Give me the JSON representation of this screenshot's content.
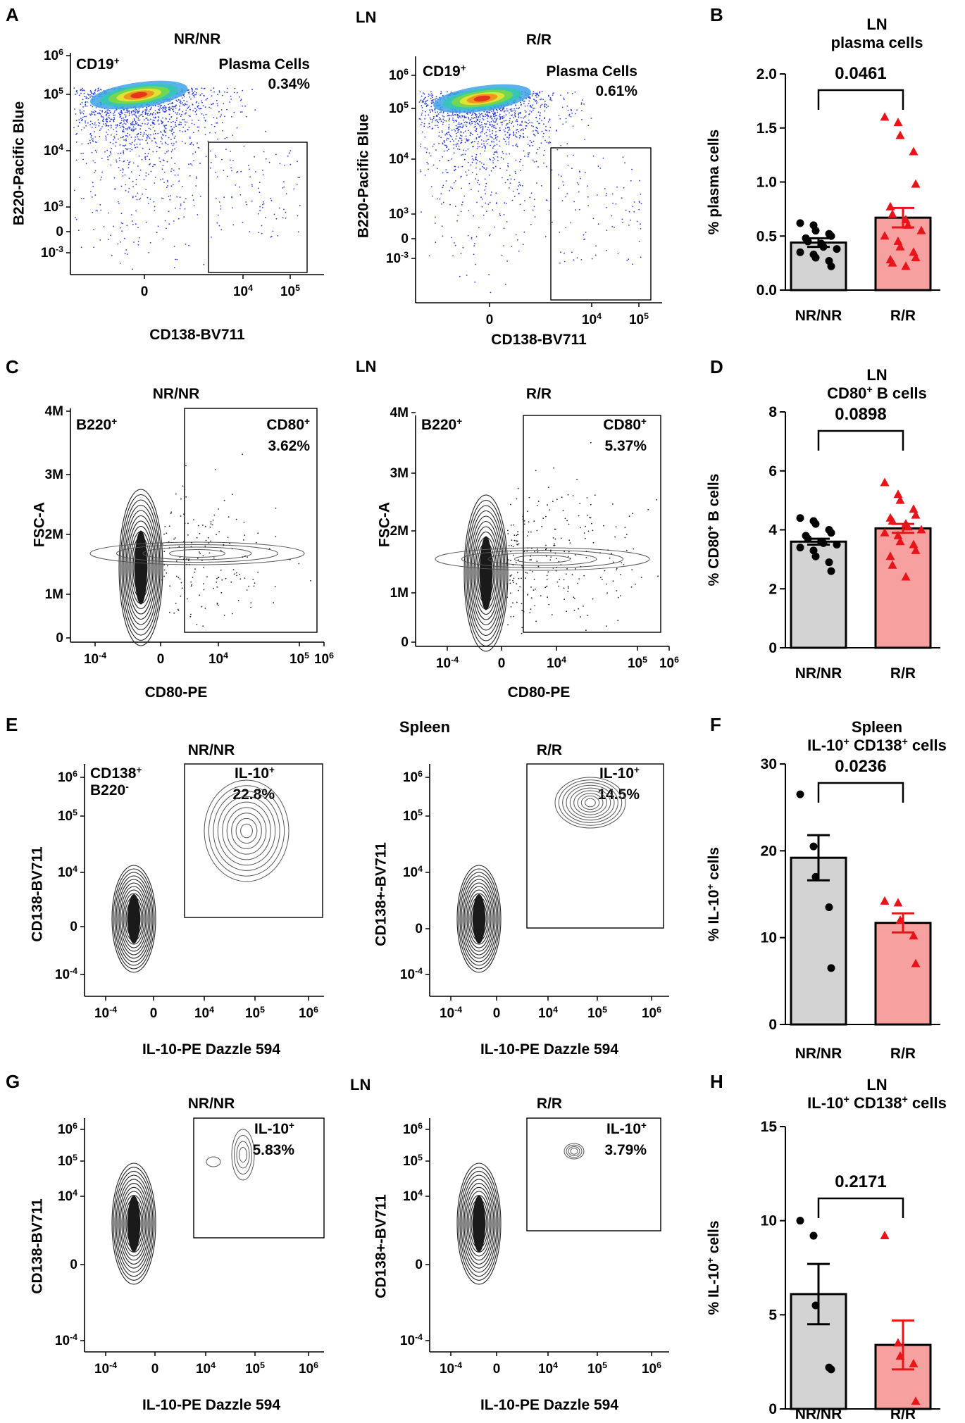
{
  "chart_data": [
    {
      "id": "A",
      "type": "flow-density-plot",
      "panel_label": "A",
      "group_header": "LN",
      "plots": [
        {
          "genotype": "NR/NR",
          "parent_gate": "CD19+",
          "gate_name": "Plasma Cells",
          "gate_value": "0.34%",
          "xlabel": "CD138-BV711",
          "ylabel": "B220-Pacific Blue",
          "x_ticks": [
            "0",
            "10^4",
            "10^5"
          ],
          "y_ticks": [
            "10^6",
            "10^5",
            "10^4",
            "10^3",
            "0",
            "10^-3"
          ]
        },
        {
          "genotype": "R/R",
          "parent_gate": "CD19+",
          "gate_name": "Plasma Cells",
          "gate_value": "0.61%",
          "xlabel": "CD138-BV711",
          "ylabel": "B220-Pacific Blue",
          "x_ticks": [
            "0",
            "10^4",
            "10^5"
          ],
          "y_ticks": [
            "10^6",
            "10^5",
            "10^4",
            "10^3",
            "0",
            "10^-3"
          ]
        }
      ]
    },
    {
      "id": "B",
      "type": "bar",
      "panel_label": "B",
      "title": "LN",
      "subtitle": "plasma cells",
      "ylabel": "% plasma cells",
      "ylim": [
        0,
        2.0
      ],
      "y_ticks": [
        "0.0",
        "0.5",
        "1.0",
        "1.5",
        "2.0"
      ],
      "categories": [
        "NR/NR",
        "R/R"
      ],
      "means": [
        0.44,
        0.67
      ],
      "sem": [
        0.04,
        0.09
      ],
      "points": [
        [
          0.62,
          0.6,
          0.55,
          0.52,
          0.5,
          0.48,
          0.45,
          0.43,
          0.4,
          0.38,
          0.35,
          0.33,
          0.3,
          0.27,
          0.22
        ],
        [
          1.6,
          1.55,
          1.43,
          1.28,
          0.98,
          0.77,
          0.7,
          0.65,
          0.6,
          0.55,
          0.5,
          0.45,
          0.4,
          0.35,
          0.3,
          0.28,
          0.25,
          0.22
        ]
      ],
      "p_value": "0.0461",
      "colors": [
        "#d3d3d3",
        "#f7a0a0"
      ],
      "point_colors": [
        "#000000",
        "#e8141a"
      ]
    },
    {
      "id": "C",
      "type": "flow-contour-plot",
      "panel_label": "C",
      "group_header": "LN",
      "plots": [
        {
          "genotype": "NR/NR",
          "parent_gate": "B220+",
          "gate_name": "CD80+",
          "gate_value": "3.62%",
          "xlabel": "CD80-PE",
          "ylabel": "FSC-A",
          "x_ticks": [
            "10^-4",
            "0",
            "10^4",
            "10^5",
            "10^6"
          ],
          "y_ticks": [
            "4M",
            "3M",
            "2M",
            "1M",
            "0"
          ]
        },
        {
          "genotype": "R/R",
          "parent_gate": "B220+",
          "gate_name": "CD80+",
          "gate_value": "5.37%",
          "xlabel": "CD80-PE",
          "ylabel": "FSC-A",
          "x_ticks": [
            "10^-4",
            "0",
            "10^4",
            "10^5",
            "10^6"
          ],
          "y_ticks": [
            "4M",
            "3M",
            "2M",
            "1M",
            "0"
          ]
        }
      ]
    },
    {
      "id": "D",
      "type": "bar",
      "panel_label": "D",
      "title": "LN",
      "subtitle": "CD80+ B cells",
      "ylabel": "% CD80+ B cells",
      "ylim": [
        0,
        8
      ],
      "y_ticks": [
        "0",
        "2",
        "4",
        "6",
        "8"
      ],
      "categories": [
        "NR/NR",
        "R/R"
      ],
      "means": [
        3.6,
        4.05
      ],
      "sem": [
        0.1,
        0.15
      ],
      "points": [
        [
          4.4,
          4.3,
          4.2,
          4.0,
          3.9,
          3.8,
          3.7,
          3.6,
          3.55,
          3.5,
          3.4,
          3.3,
          3.1,
          2.9,
          2.6
        ],
        [
          5.6,
          5.2,
          5.0,
          4.7,
          4.5,
          4.4,
          4.3,
          4.2,
          4.1,
          4.0,
          3.9,
          3.8,
          3.6,
          3.5,
          3.3,
          3.1,
          2.8,
          2.4
        ]
      ],
      "p_value": "0.0898",
      "colors": [
        "#d3d3d3",
        "#f7a0a0"
      ],
      "point_colors": [
        "#000000",
        "#e8141a"
      ]
    },
    {
      "id": "E",
      "type": "flow-contour-plot",
      "panel_label": "E",
      "group_header": "Spleen",
      "plots": [
        {
          "genotype": "NR/NR",
          "parent_gate": "CD138+",
          "parent_gate_line2": "B220-",
          "gate_name": "IL-10+",
          "gate_value": "22.8%",
          "xlabel": "IL-10-PE Dazzle 594",
          "ylabel": "CD138-BV711",
          "x_ticks": [
            "10^-4",
            "0",
            "10^4",
            "10^5",
            "10^6"
          ],
          "y_ticks": [
            "10^6",
            "10^5",
            "10^4",
            "0",
            "10^-4"
          ]
        },
        {
          "genotype": "R/R",
          "parent_gate": "",
          "gate_name": "IL-10+",
          "gate_value": "14.5%",
          "xlabel": "IL-10-PE Dazzle 594",
          "ylabel": "CD138+-BV711",
          "x_ticks": [
            "10^-4",
            "0",
            "10^4",
            "10^5",
            "10^6"
          ],
          "y_ticks": [
            "10^6",
            "10^5",
            "10^4",
            "0",
            "10^-4"
          ]
        }
      ]
    },
    {
      "id": "F",
      "type": "bar",
      "panel_label": "F",
      "title": "Spleen",
      "subtitle": "IL-10+ CD138+ cells",
      "ylabel": "% IL-10+ cells",
      "ylim": [
        0,
        30
      ],
      "y_ticks": [
        "0",
        "10",
        "20",
        "30"
      ],
      "categories": [
        "NR/NR",
        "R/R"
      ],
      "means": [
        19.2,
        11.7
      ],
      "sem": [
        2.6,
        1.1
      ],
      "points": [
        [
          26.5,
          20.5,
          17.0,
          13.5,
          6.5
        ],
        [
          14.2,
          14.0,
          12.0,
          10.2,
          7.0
        ]
      ],
      "p_value": "0.0236",
      "colors": [
        "#d3d3d3",
        "#f7a0a0"
      ],
      "point_colors": [
        "#000000",
        "#e8141a"
      ]
    },
    {
      "id": "G",
      "type": "flow-contour-plot",
      "panel_label": "G",
      "group_header": "LN",
      "plots": [
        {
          "genotype": "NR/NR",
          "parent_gate": "",
          "gate_name": "IL-10+",
          "gate_value": "5.83%",
          "xlabel": "IL-10-PE Dazzle 594",
          "ylabel": "CD138-BV711",
          "x_ticks": [
            "10^-4",
            "0",
            "10^4",
            "10^5",
            "10^6"
          ],
          "y_ticks": [
            "10^6",
            "10^5",
            "10^4",
            "0",
            "10^-4"
          ]
        },
        {
          "genotype": "R/R",
          "parent_gate": "",
          "gate_name": "IL-10+",
          "gate_value": "3.79%",
          "xlabel": "IL-10-PE Dazzle 594",
          "ylabel": "CD138+-BV711",
          "x_ticks": [
            "10^-4",
            "0",
            "10^4",
            "10^5",
            "10^6"
          ],
          "y_ticks": [
            "10^6",
            "10^5",
            "10^4",
            "0",
            "10^-4"
          ]
        }
      ]
    },
    {
      "id": "H",
      "type": "bar",
      "panel_label": "H",
      "title": "LN",
      "subtitle": "IL-10+ CD138+ cells",
      "ylabel": "% IL-10+ cells",
      "ylim": [
        0,
        15
      ],
      "y_ticks": [
        "0",
        "5",
        "10",
        "15"
      ],
      "categories": [
        "NR/NR",
        "R/R"
      ],
      "means": [
        6.1,
        3.4
      ],
      "sem": [
        1.6,
        1.3
      ],
      "points": [
        [
          10.0,
          9.2,
          5.5,
          2.2,
          2.1
        ],
        [
          9.2,
          3.5,
          2.8,
          2.4,
          0.4
        ]
      ],
      "p_value": "0.2171",
      "colors": [
        "#d3d3d3",
        "#f7a0a0"
      ],
      "point_colors": [
        "#000000",
        "#e8141a"
      ]
    }
  ]
}
